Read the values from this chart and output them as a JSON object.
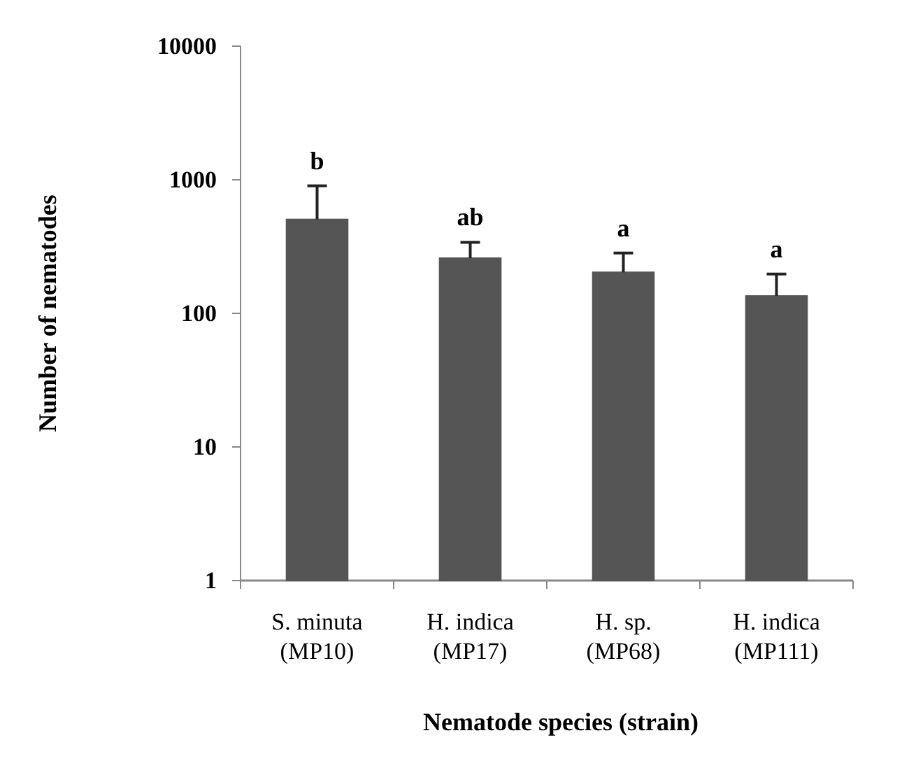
{
  "chart_data": {
    "type": "bar",
    "xlabel": "Nematode species (strain)",
    "ylabel": "Number of nematodes",
    "categories": [
      "S. minuta\n(MP10)",
      "H. indica\n(MP17)",
      "H. sp.\n(MP68)",
      "H. indica\n(MP111)"
    ],
    "values": [
      505,
      259,
      203,
      135
    ],
    "color": "#555555",
    "errors": [
      [
        505,
        901
      ],
      [
        259,
        340
      ],
      [
        203,
        283
      ],
      [
        135,
        197
      ]
    ],
    "log": true,
    "ylim": [
      1,
      10000
    ],
    "yticks": [
      1,
      10,
      100,
      1000,
      10000
    ],
    "grid": false,
    "annotations": [
      {
        "text": "b",
        "x": "S. minuta\n(MP10)",
        "y": 901
      },
      {
        "text": "ab",
        "x": "H. indica\n(MP17)",
        "y": 340
      },
      {
        "text": "a",
        "x": "H. sp.\n(MP68)",
        "y": 283
      },
      {
        "text": "a",
        "x": "H. indica\n(MP111)",
        "y": 197
      }
    ]
  }
}
